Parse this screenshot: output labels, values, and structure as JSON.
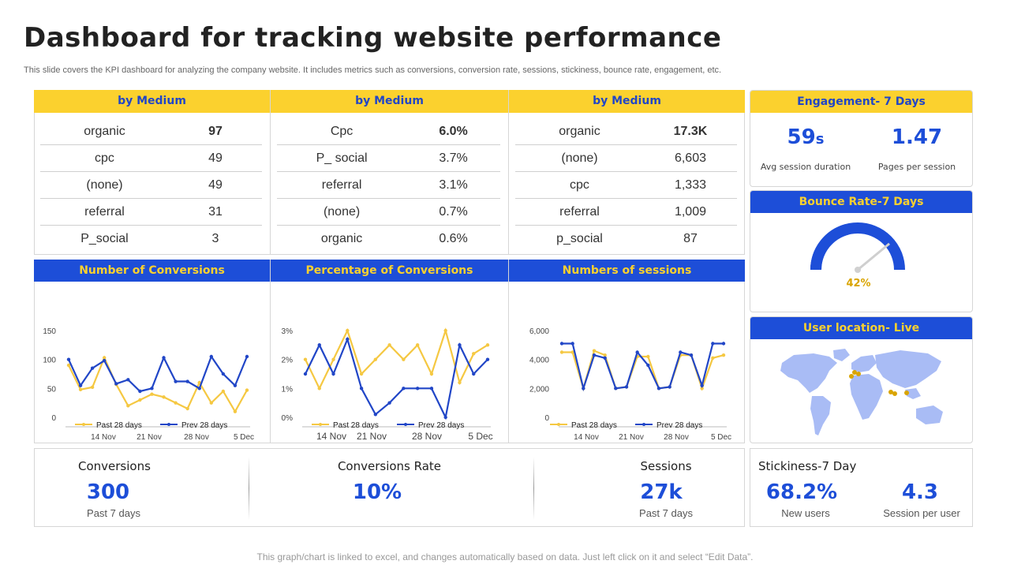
{
  "title": "Dashboard for tracking website performance",
  "subtitle": "This slide covers the KPI dashboard for analyzing the company website. It includes metrics such as conversions, conversion rate, sessions, stickiness, bounce rate, engagement, etc.",
  "tables": [
    {
      "header": "by Medium",
      "rows": [
        [
          "organic",
          "97"
        ],
        [
          "cpc",
          "49"
        ],
        [
          "(none)",
          "49"
        ],
        [
          "referral",
          "31"
        ],
        [
          "P_social",
          "3"
        ]
      ]
    },
    {
      "header": "by Medium",
      "rows": [
        [
          "Cpc",
          "6.0%"
        ],
        [
          "P_ social",
          "3.7%"
        ],
        [
          "referral",
          "3.1%"
        ],
        [
          "(none)",
          "0.7%"
        ],
        [
          "organic",
          "0.6%"
        ]
      ]
    },
    {
      "header": "by Medium",
      "rows": [
        [
          "organic",
          "17.3K"
        ],
        [
          "(none)",
          "6,603"
        ],
        [
          "cpc",
          "1,333"
        ],
        [
          "referral",
          "1,009"
        ],
        [
          "p_social",
          "87"
        ]
      ]
    }
  ],
  "engagement": {
    "header": "Engagement- 7 Days",
    "session_value": "59",
    "session_unit": "s",
    "session_label": "Avg session duration",
    "pages_value": "1.47",
    "pages_label": "Pages per session"
  },
  "bounce": {
    "header": "Bounce Rate-7 Days",
    "value_text": "42%",
    "value": 42
  },
  "location": {
    "header": "User location- Live"
  },
  "chart_headers": [
    "Number of Conversions",
    "Percentage of Conversions",
    "Numbers  of sessions"
  ],
  "chart_data": [
    {
      "type": "line",
      "title": "Number of Conversions",
      "x_tick_labels": [
        "14 Nov",
        "21 Nov",
        "28 Nov",
        "5 Dec"
      ],
      "y_tick_labels": [
        "150",
        "100",
        "50",
        "0"
      ],
      "ylim": [
        0,
        150
      ],
      "series": [
        {
          "name": "Past 28 days",
          "color": "#F5C842",
          "values": [
            90,
            48,
            52,
            103,
            57,
            20,
            30,
            40,
            35,
            25,
            15,
            60,
            25,
            45,
            10,
            47
          ]
        },
        {
          "name": "Prev 28 days",
          "color": "#2146C7",
          "values": [
            100,
            55,
            85,
            98,
            58,
            65,
            45,
            50,
            103,
            62,
            62,
            50,
            105,
            75,
            55,
            105
          ]
        }
      ]
    },
    {
      "type": "line",
      "title": "Percentage of Conversions",
      "x_tick_labels": [
        "14 Nov",
        "21 Nov",
        "28 Nov",
        "5 Dec"
      ],
      "y_tick_labels": [
        "3%",
        "2%",
        "1%",
        "0%"
      ],
      "ylim": [
        0,
        3
      ],
      "series": [
        {
          "name": "Past 28 days",
          "color": "#F5C842",
          "values": [
            2.0,
            1.0,
            2.0,
            3.0,
            1.5,
            2.0,
            2.5,
            2.0,
            2.5,
            1.5,
            3.0,
            1.2,
            2.2,
            2.5
          ]
        },
        {
          "name": "Prev 28 days",
          "color": "#2146C7",
          "values": [
            1.5,
            2.5,
            1.5,
            2.7,
            1.0,
            0.1,
            0.5,
            1.0,
            1.0,
            1.0,
            0.0,
            2.5,
            1.5,
            2.0
          ]
        }
      ]
    },
    {
      "type": "line",
      "title": "Numbers  of sessions",
      "x_tick_labels": [
        "14 Nov",
        "21 Nov",
        "28 Nov",
        "5 Dec"
      ],
      "y_tick_labels": [
        "6,000",
        "4,000",
        "2,000",
        "0"
      ],
      "ylim": [
        0,
        6000
      ],
      "series": [
        {
          "name": "Past 28 days",
          "color": "#F5C842",
          "values": [
            4500,
            4500,
            2000,
            4600,
            4300,
            2000,
            2100,
            4200,
            4200,
            2000,
            2100,
            4300,
            4300,
            2000,
            4100,
            4300
          ]
        },
        {
          "name": "Prev 28 days",
          "color": "#2146C7",
          "values": [
            5100,
            5100,
            2000,
            4300,
            4100,
            2000,
            2100,
            4500,
            3600,
            2000,
            2100,
            4500,
            4300,
            2200,
            5100,
            5100
          ]
        }
      ]
    }
  ],
  "kpis": [
    {
      "title": "Conversions",
      "value": "300",
      "sub": "Past 7 days"
    },
    {
      "title": "Conversions Rate",
      "value": "10%",
      "sub": ""
    },
    {
      "title": "Sessions",
      "value": "27k",
      "sub": "Past 7 days"
    }
  ],
  "stickiness": {
    "title": "Stickiness-7 Day",
    "v1": "68.2%",
    "l1": "New users",
    "v2": "4.3",
    "l2": "Session per user"
  },
  "footer": "This graph/chart is linked to excel, and changes automatically based on data. Just left click on it and select “Edit Data”.",
  "colors": {
    "blue": "#1D4ED8",
    "yellow": "#FBD12E",
    "map": "#A9BCF5",
    "map_highlight": "#D9A400"
  }
}
